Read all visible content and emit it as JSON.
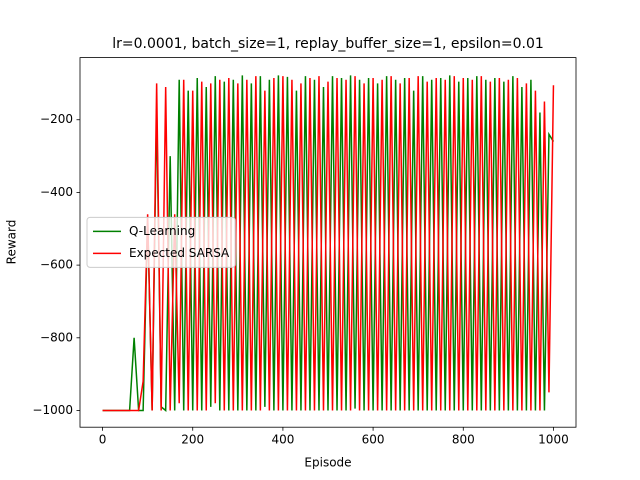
{
  "chart_data": {
    "type": "line",
    "title": "lr=0.0001, batch_size=1, replay_buffer_size=1, epsilon=0.01",
    "xlabel": "Episode",
    "ylabel": "Reward",
    "x": [
      0,
      10,
      20,
      30,
      40,
      50,
      60,
      70,
      80,
      90,
      100,
      110,
      120,
      130,
      140,
      150,
      160,
      170,
      180,
      190,
      200,
      210,
      220,
      230,
      240,
      250,
      260,
      270,
      280,
      290,
      300,
      310,
      320,
      330,
      340,
      350,
      360,
      370,
      380,
      390,
      400,
      410,
      420,
      430,
      440,
      450,
      460,
      470,
      480,
      490,
      500,
      510,
      520,
      530,
      540,
      550,
      560,
      570,
      580,
      590,
      600,
      610,
      620,
      630,
      640,
      650,
      660,
      670,
      680,
      690,
      700,
      710,
      720,
      730,
      740,
      750,
      760,
      770,
      780,
      790,
      800,
      810,
      820,
      830,
      840,
      850,
      860,
      870,
      880,
      890,
      900,
      910,
      920,
      930,
      940,
      950,
      960,
      970,
      980,
      990,
      1000
    ],
    "series": [
      {
        "name": "Q-Learning",
        "color": "#008000",
        "values": [
          -1000,
          -1000,
          -1000,
          -1000,
          -1000,
          -1000,
          -1000,
          -800,
          -1000,
          -1000,
          -470,
          -1000,
          -170,
          -990,
          -1000,
          -300,
          -1000,
          -90,
          -1000,
          -120,
          -1000,
          -85,
          -1000,
          -110,
          -990,
          -80,
          -1000,
          -95,
          -1000,
          -90,
          -1000,
          -78,
          -1000,
          -100,
          -1000,
          -80,
          -990,
          -90,
          -1000,
          -78,
          -1000,
          -82,
          -1000,
          -120,
          -1000,
          -80,
          -1000,
          -90,
          -1000,
          -110,
          -1000,
          -80,
          -1000,
          -85,
          -1000,
          -78,
          -995,
          -90,
          -1000,
          -85,
          -1000,
          -100,
          -1000,
          -80,
          -1000,
          -90,
          -1000,
          -85,
          -1000,
          -120,
          -1000,
          -80,
          -1000,
          -90,
          -1000,
          -85,
          -1000,
          -78,
          -1000,
          -95,
          -1000,
          -85,
          -1000,
          -80,
          -1000,
          -90,
          -1000,
          -85,
          -1000,
          -95,
          -1000,
          -80,
          -1000,
          -110,
          -1000,
          -90,
          -1000,
          -180,
          -1000,
          -240,
          -260
        ]
      },
      {
        "name": "Expected SARSA",
        "color": "#ff0000",
        "values": [
          -1000,
          -1000,
          -1000,
          -1000,
          -1000,
          -1000,
          -1000,
          -1000,
          -1000,
          -920,
          -460,
          -1000,
          -100,
          -1000,
          -110,
          -1000,
          -460,
          -980,
          -90,
          -1000,
          -120,
          -1000,
          -95,
          -1000,
          -100,
          -980,
          -90,
          -1000,
          -85,
          -1000,
          -100,
          -1000,
          -90,
          -1000,
          -80,
          -1000,
          -120,
          -1000,
          -85,
          -1000,
          -80,
          -1000,
          -90,
          -1000,
          -100,
          -1000,
          -85,
          -1000,
          -80,
          -1000,
          -95,
          -1000,
          -85,
          -1000,
          -90,
          -1000,
          -80,
          -1000,
          -100,
          -1000,
          -85,
          -1000,
          -90,
          -1000,
          -80,
          -1000,
          -100,
          -1000,
          -85,
          -1000,
          -80,
          -1000,
          -95,
          -1000,
          -85,
          -1000,
          -90,
          -1000,
          -80,
          -1000,
          -85,
          -1000,
          -90,
          -1000,
          -80,
          -1000,
          -95,
          -1000,
          -85,
          -1000,
          -90,
          -1000,
          -85,
          -1000,
          -100,
          -1000,
          -120,
          -1000,
          -150,
          -950,
          -105
        ]
      }
    ],
    "xlim": [
      -50,
      1050
    ],
    "ylim": [
      -1046,
      -29
    ],
    "xticks": [
      0,
      200,
      400,
      600,
      800,
      1000
    ],
    "yticks": [
      {
        "value": -1000,
        "label": "−1000"
      },
      {
        "value": -800,
        "label": "−800"
      },
      {
        "value": -600,
        "label": "−600"
      },
      {
        "value": -400,
        "label": "−400"
      },
      {
        "value": -200,
        "label": "−200"
      }
    ],
    "legend": "center left"
  }
}
